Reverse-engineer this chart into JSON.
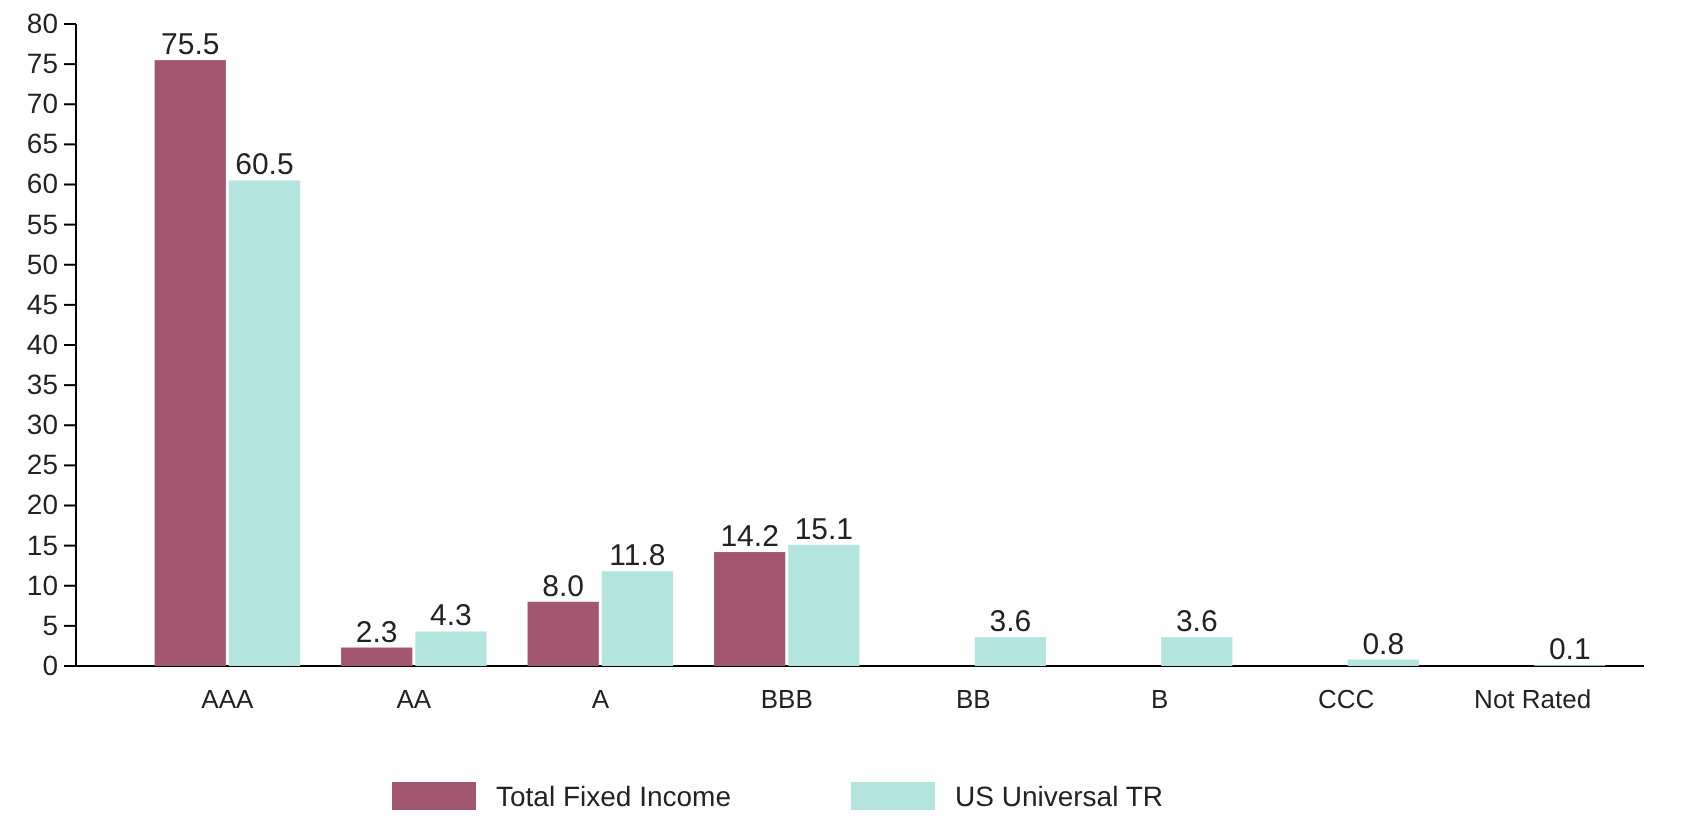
{
  "chart_data": {
    "type": "bar",
    "categories": [
      "AAA",
      "AA",
      "A",
      "BBB",
      "BB",
      "B",
      "CCC",
      "Not Rated"
    ],
    "series": [
      {
        "name": "Total Fixed Income",
        "color": "#a3566f",
        "values": [
          75.5,
          2.3,
          8.0,
          14.2,
          null,
          null,
          null,
          null
        ],
        "value_labels": [
          "75.5",
          "2.3",
          "8.0",
          "14.2",
          null,
          null,
          null,
          null
        ]
      },
      {
        "name": "US Universal TR",
        "color": "#b4e4de",
        "values": [
          60.5,
          4.3,
          11.8,
          15.1,
          3.6,
          3.6,
          0.8,
          0.1
        ],
        "value_labels": [
          "60.5",
          "4.3",
          "11.8",
          "15.1",
          "3.6",
          "3.6",
          "0.8",
          "0.1"
        ]
      }
    ],
    "ylim": [
      0,
      80
    ],
    "yticks": [
      0,
      5,
      10,
      15,
      20,
      25,
      30,
      35,
      40,
      45,
      50,
      55,
      60,
      65,
      70,
      75,
      80
    ],
    "grid": false,
    "legend": "bottom"
  }
}
